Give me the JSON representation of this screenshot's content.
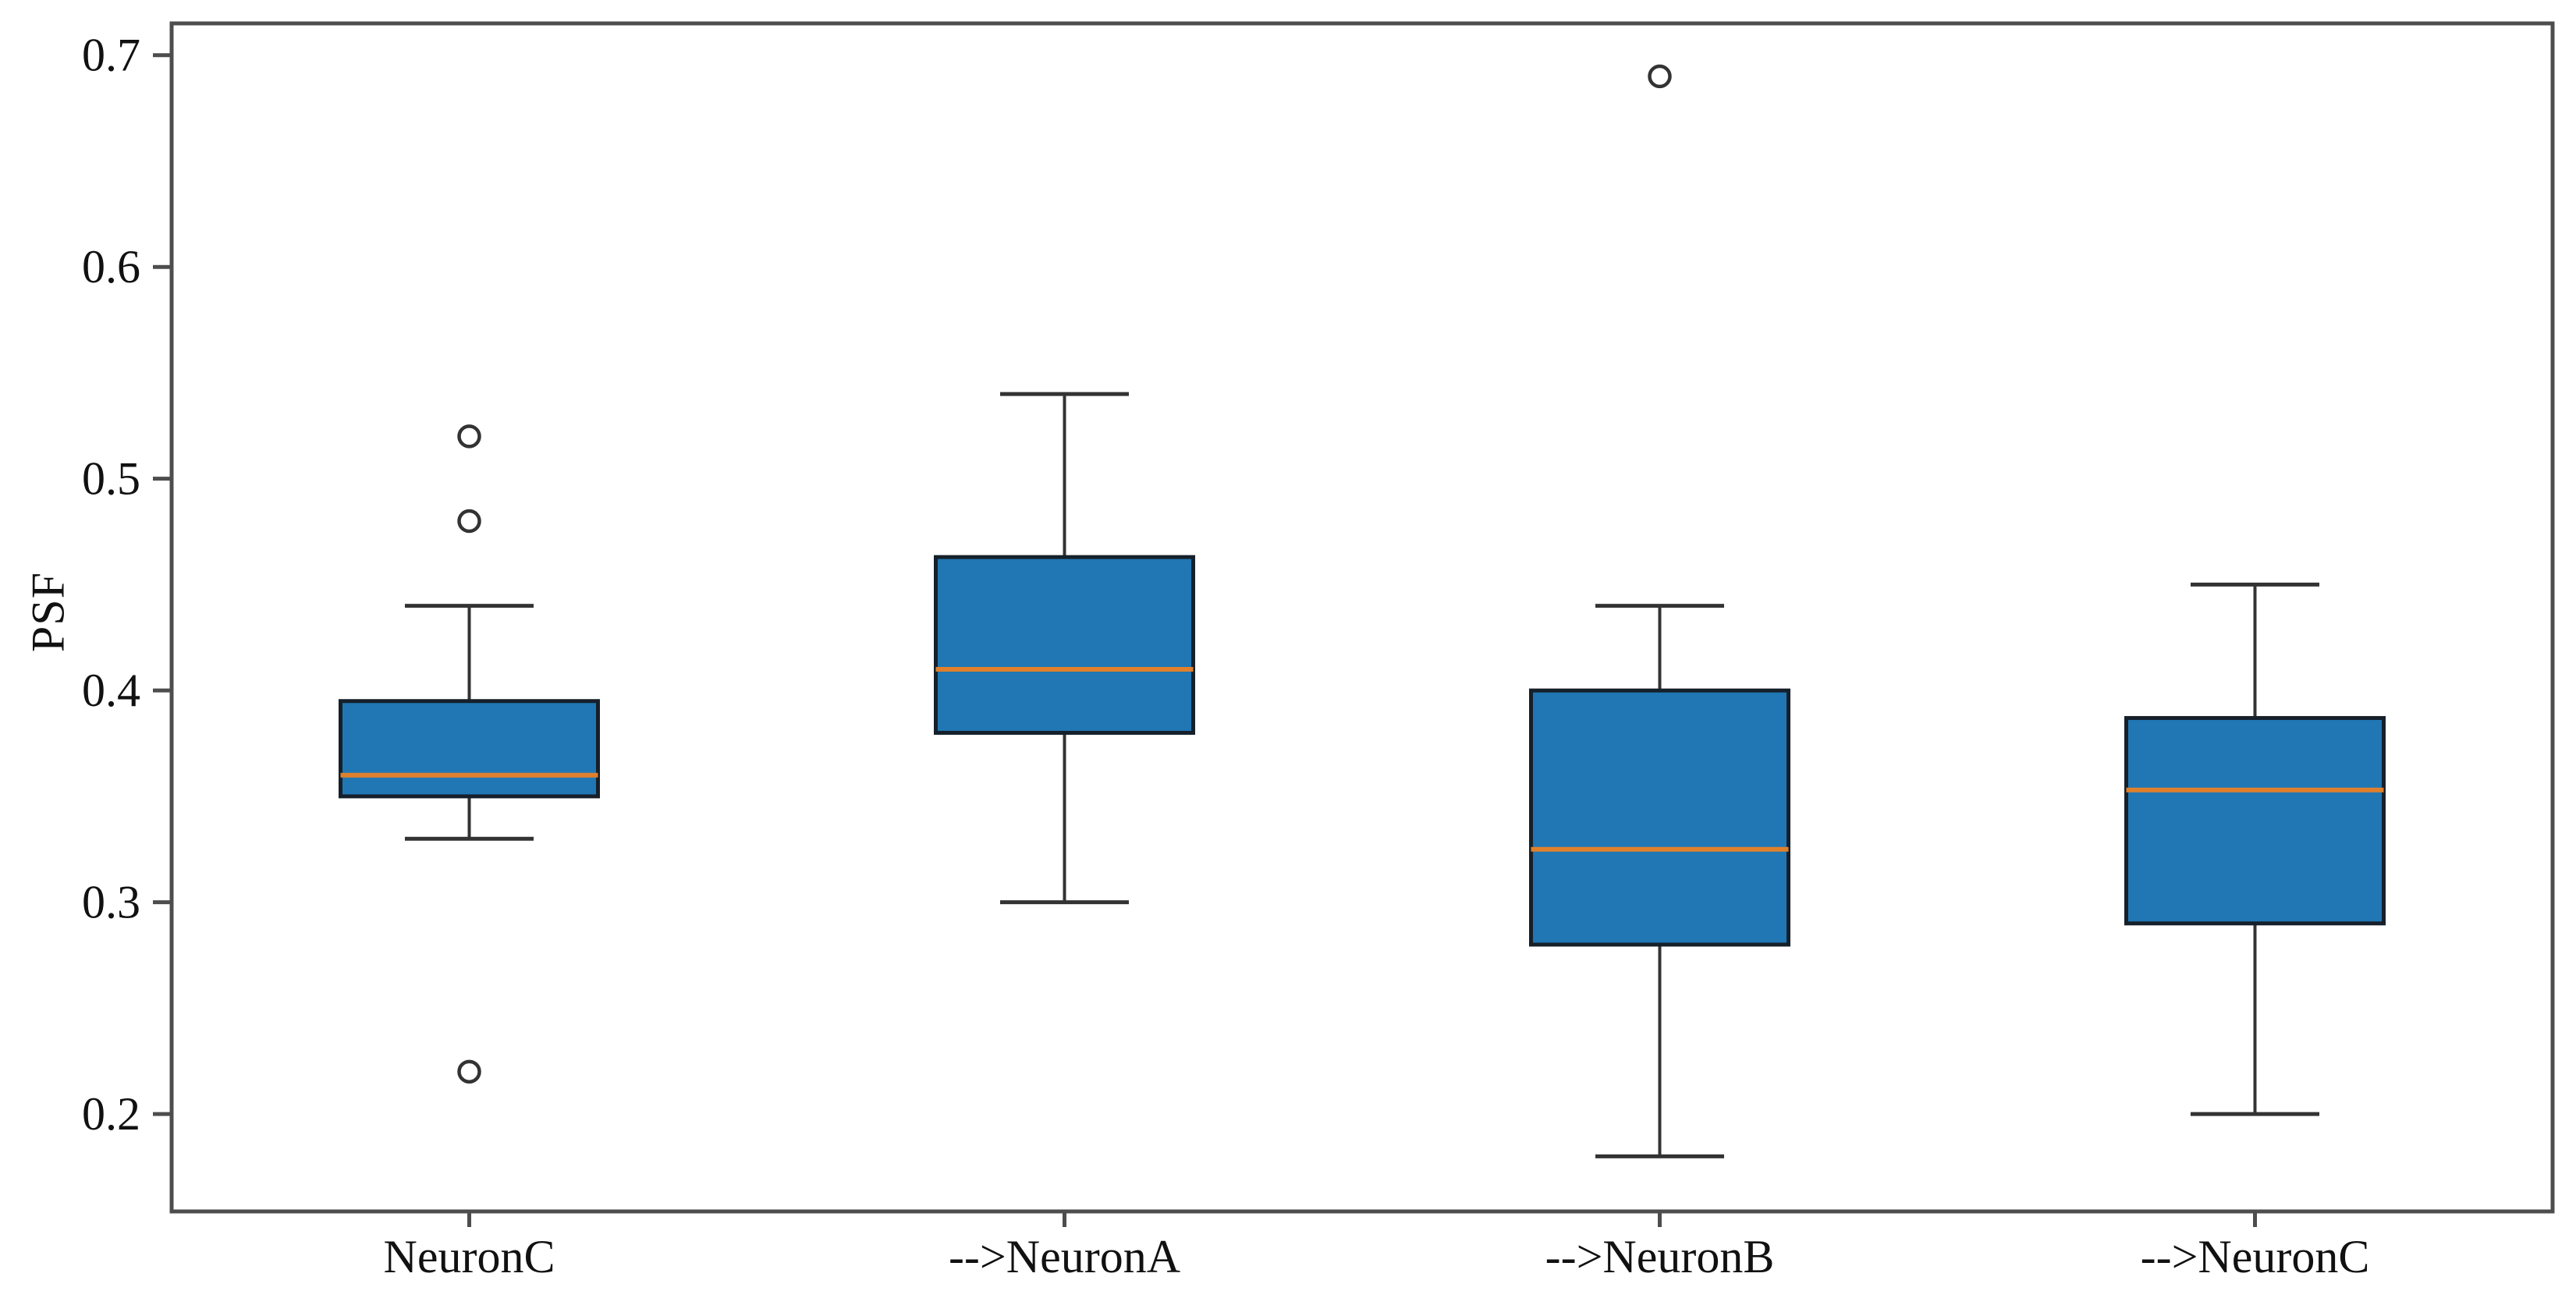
{
  "chart_data": {
    "type": "boxplot",
    "title": "",
    "xlabel": "",
    "ylabel": "PSF",
    "categories": [
      "NeuronC",
      "-->NeuronA",
      "-->NeuronB",
      "-->NeuronC"
    ],
    "yticks": [
      0.2,
      0.3,
      0.4,
      0.5,
      0.6,
      0.7
    ],
    "ytick_labels": [
      "0.2",
      "0.3",
      "0.4",
      "0.5",
      "0.6",
      "0.7"
    ],
    "ylim": [
      0.154,
      0.715
    ],
    "grid": false,
    "legend": null,
    "series": [
      {
        "name": "NeuronC",
        "whisker_low": 0.33,
        "q1": 0.35,
        "median": 0.36,
        "q3": 0.395,
        "whisker_high": 0.44,
        "outliers": [
          0.52,
          0.48,
          0.22
        ]
      },
      {
        "name": "-->NeuronA",
        "whisker_low": 0.3,
        "q1": 0.38,
        "median": 0.41,
        "q3": 0.463,
        "whisker_high": 0.54,
        "outliers": []
      },
      {
        "name": "-->NeuronB",
        "whisker_low": 0.18,
        "q1": 0.28,
        "median": 0.325,
        "q3": 0.4,
        "whisker_high": 0.44,
        "outliers": [
          0.69
        ]
      },
      {
        "name": "-->NeuronC",
        "whisker_low": 0.2,
        "q1": 0.29,
        "median": 0.353,
        "q3": 0.387,
        "whisker_high": 0.45,
        "outliers": []
      }
    ],
    "colors": {
      "box_fill": "#2077b4",
      "box_edge": "#16202a",
      "median": "#e0802c",
      "whisker": "#333333",
      "spine": "#4d4d4d",
      "tick_label": "#111111",
      "background": "#ffffff"
    }
  }
}
